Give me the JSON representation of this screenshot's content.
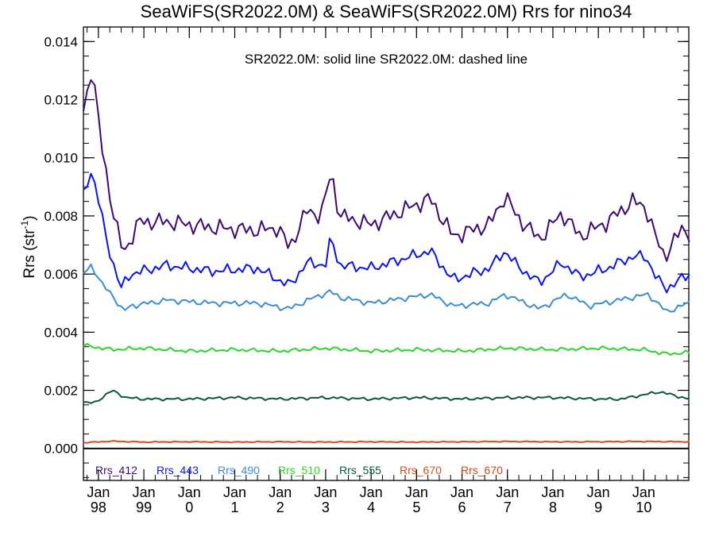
{
  "chart_data": {
    "type": "line",
    "title": "SeaWiFS(SR2022.0M) & SeaWiFS(SR2022.0M)  Rrs for nino34",
    "subtitle": "SR2022.0M: solid line   SR2022.0M: dashed line",
    "xlabel": "",
    "ylabel_main": "Rrs (str",
    "ylabel_sup": "-1",
    "ylabel_close": ")",
    "xlim": [
      1997.67,
      2010.99
    ],
    "ylim": [
      -0.0011,
      0.0145
    ],
    "y_ticks": [
      "0.000",
      "0.002",
      "0.004",
      "0.006",
      "0.008",
      "0.010",
      "0.012",
      "0.014"
    ],
    "x_ticks": [
      {
        "top": "Jan",
        "bottom": "98"
      },
      {
        "top": "Jan",
        "bottom": "99"
      },
      {
        "top": "Jan",
        "bottom": "0"
      },
      {
        "top": "Jan",
        "bottom": "1"
      },
      {
        "top": "Jan",
        "bottom": "2"
      },
      {
        "top": "Jan",
        "bottom": "3"
      },
      {
        "top": "Jan",
        "bottom": "4"
      },
      {
        "top": "Jan",
        "bottom": "5"
      },
      {
        "top": "Jan",
        "bottom": "6"
      },
      {
        "top": "Jan",
        "bottom": "7"
      },
      {
        "top": "Jan",
        "bottom": "8"
      },
      {
        "top": "Jan",
        "bottom": "9"
      },
      {
        "top": "Jan",
        "bottom": "10"
      }
    ],
    "x_tick_years": [
      1998,
      1999,
      2000,
      2001,
      2002,
      2003,
      2004,
      2005,
      2006,
      2007,
      2008,
      2009,
      2010
    ],
    "legend_position": "bottom-left",
    "grid": false,
    "series": [
      {
        "name": "Rrs_412",
        "color": "#3b0a78",
        "knots": [
          [
            1997.67,
            0.0116
          ],
          [
            1997.85,
            0.0131
          ],
          [
            1997.95,
            0.012
          ],
          [
            1998.05,
            0.0106
          ],
          [
            1998.15,
            0.0097
          ],
          [
            1998.35,
            0.0079
          ],
          [
            1998.55,
            0.0067
          ],
          [
            1998.9,
            0.0078
          ],
          [
            1999.5,
            0.0078
          ],
          [
            2000.5,
            0.0076
          ],
          [
            2001.5,
            0.0075
          ],
          [
            2001.95,
            0.0076
          ],
          [
            2002.2,
            0.0069
          ],
          [
            2002.6,
            0.0082
          ],
          [
            2002.9,
            0.008
          ],
          [
            2003.05,
            0.009
          ],
          [
            2003.12,
            0.0096
          ],
          [
            2003.3,
            0.008
          ],
          [
            2004.0,
            0.0077
          ],
          [
            2005.3,
            0.0086
          ],
          [
            2005.8,
            0.0073
          ],
          [
            2006.6,
            0.0077
          ],
          [
            2006.95,
            0.0087
          ],
          [
            2007.2,
            0.008
          ],
          [
            2007.7,
            0.0072
          ],
          [
            2008.2,
            0.0081
          ],
          [
            2008.6,
            0.0073
          ],
          [
            2009.2,
            0.0078
          ],
          [
            2009.75,
            0.0085
          ],
          [
            2010.05,
            0.0083
          ],
          [
            2010.25,
            0.0073
          ],
          [
            2010.45,
            0.0066
          ],
          [
            2010.7,
            0.0072
          ],
          [
            2010.85,
            0.0076
          ],
          [
            2010.99,
            0.0074
          ]
        ],
        "amp": 0.00035
      },
      {
        "name": "Rrs_443",
        "color": "#0a14e6",
        "knots": [
          [
            1997.67,
            0.0087
          ],
          [
            1997.85,
            0.0096
          ],
          [
            1998.05,
            0.0082
          ],
          [
            1998.2,
            0.007
          ],
          [
            1998.5,
            0.0055
          ],
          [
            1998.7,
            0.006
          ],
          [
            1999.5,
            0.0063
          ],
          [
            2000.5,
            0.0061
          ],
          [
            2001.5,
            0.0062
          ],
          [
            2002.2,
            0.0056
          ],
          [
            2002.6,
            0.0064
          ],
          [
            2003.0,
            0.0063
          ],
          [
            2003.12,
            0.0073
          ],
          [
            2003.3,
            0.0063
          ],
          [
            2004.0,
            0.0062
          ],
          [
            2005.3,
            0.0068
          ],
          [
            2005.8,
            0.0058
          ],
          [
            2006.6,
            0.0062
          ],
          [
            2006.95,
            0.0068
          ],
          [
            2007.2,
            0.0063
          ],
          [
            2007.7,
            0.0057
          ],
          [
            2008.2,
            0.0064
          ],
          [
            2008.6,
            0.0059
          ],
          [
            2009.2,
            0.0062
          ],
          [
            2009.75,
            0.0066
          ],
          [
            2010.05,
            0.0066
          ],
          [
            2010.3,
            0.0058
          ],
          [
            2010.5,
            0.0055
          ],
          [
            2010.8,
            0.0058
          ],
          [
            2010.99,
            0.006
          ]
        ],
        "amp": 0.00022
      },
      {
        "name": "Rrs_490",
        "color": "#3a8ed6",
        "knots": [
          [
            1997.67,
            0.006
          ],
          [
            1997.85,
            0.0063
          ],
          [
            1998.1,
            0.0056
          ],
          [
            1998.35,
            0.0052
          ],
          [
            1998.55,
            0.0047
          ],
          [
            1998.7,
            0.0049
          ],
          [
            1999.5,
            0.0051
          ],
          [
            2000.5,
            0.005
          ],
          [
            2001.5,
            0.005
          ],
          [
            2002.2,
            0.0048
          ],
          [
            2002.6,
            0.0051
          ],
          [
            2003.1,
            0.0054
          ],
          [
            2003.3,
            0.0052
          ],
          [
            2004.0,
            0.005
          ],
          [
            2005.3,
            0.0053
          ],
          [
            2005.8,
            0.0049
          ],
          [
            2006.6,
            0.005
          ],
          [
            2006.95,
            0.0053
          ],
          [
            2007.7,
            0.0048
          ],
          [
            2008.3,
            0.0053
          ],
          [
            2008.8,
            0.0049
          ],
          [
            2009.75,
            0.0052
          ],
          [
            2010.1,
            0.0053
          ],
          [
            2010.5,
            0.0047
          ],
          [
            2010.99,
            0.005
          ]
        ],
        "amp": 0.00012
      },
      {
        "name": "Rrs_510",
        "color": "#2ed22e",
        "knots": [
          [
            1997.67,
            0.00355
          ],
          [
            1998.3,
            0.0034
          ],
          [
            1999.0,
            0.00345
          ],
          [
            2000.0,
            0.00335
          ],
          [
            2001.0,
            0.0034
          ],
          [
            2002.0,
            0.00335
          ],
          [
            2003.0,
            0.00345
          ],
          [
            2004.0,
            0.00335
          ],
          [
            2005.0,
            0.0034
          ],
          [
            2006.0,
            0.00335
          ],
          [
            2007.0,
            0.00345
          ],
          [
            2008.0,
            0.0034
          ],
          [
            2009.0,
            0.00345
          ],
          [
            2010.0,
            0.0034
          ],
          [
            2010.5,
            0.00325
          ],
          [
            2010.99,
            0.0033
          ]
        ],
        "amp": 8e-05
      },
      {
        "name": "Rrs_555",
        "color": "#0a5a32",
        "knots": [
          [
            1997.67,
            0.0016
          ],
          [
            1997.9,
            0.00155
          ],
          [
            1998.3,
            0.002
          ],
          [
            1998.6,
            0.00175
          ],
          [
            1999.0,
            0.0017
          ],
          [
            2000.0,
            0.0017
          ],
          [
            2001.0,
            0.00175
          ],
          [
            2002.0,
            0.0017
          ],
          [
            2003.0,
            0.00175
          ],
          [
            2004.0,
            0.0017
          ],
          [
            2005.0,
            0.00175
          ],
          [
            2006.0,
            0.0017
          ],
          [
            2007.0,
            0.00175
          ],
          [
            2008.0,
            0.00175
          ],
          [
            2009.0,
            0.0017
          ],
          [
            2009.5,
            0.0017
          ],
          [
            2010.35,
            0.00195
          ],
          [
            2010.99,
            0.0017
          ]
        ],
        "amp": 6e-05
      },
      {
        "name": "Rrs_670",
        "color": "#d2501e",
        "knots": [
          [
            1997.67,
            0.0002
          ],
          [
            1998.3,
            0.00025
          ],
          [
            1999.0,
            0.00022
          ],
          [
            2000.0,
            0.00023
          ],
          [
            2001.0,
            0.00022
          ],
          [
            2002.0,
            0.00023
          ],
          [
            2003.0,
            0.00022
          ],
          [
            2004.0,
            0.00023
          ],
          [
            2005.0,
            0.00022
          ],
          [
            2006.0,
            0.00023
          ],
          [
            2007.0,
            0.00024
          ],
          [
            2008.0,
            0.00023
          ],
          [
            2009.0,
            0.00023
          ],
          [
            2010.0,
            0.00024
          ],
          [
            2010.99,
            0.00023
          ]
        ],
        "amp": 2e-05
      },
      {
        "name": "Rrs_670",
        "color": "#c84614",
        "legend_only": true,
        "knots": [],
        "amp": 0
      }
    ]
  }
}
